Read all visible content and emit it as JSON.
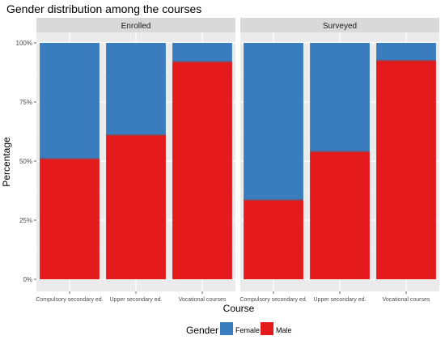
{
  "chart_data": {
    "type": "bar",
    "stacked": true,
    "orientation": "vertical",
    "title": "Gender distribution among the courses",
    "xlabel": "Course",
    "ylabel": "Percentage",
    "ylim": [
      0,
      1
    ],
    "yticks": [
      {
        "value": 0,
        "label": "0%"
      },
      {
        "value": 0.25,
        "label": "25%"
      },
      {
        "value": 0.5,
        "label": "50%"
      },
      {
        "value": 0.75,
        "label": "75%"
      },
      {
        "value": 1,
        "label": "100%"
      }
    ],
    "grid": true,
    "legend": {
      "title": "Gender",
      "position": "bottom",
      "entries": [
        {
          "label": "Female",
          "color": "#3a7dbf"
        },
        {
          "label": "Male",
          "color": "#e41a1c"
        }
      ]
    },
    "categories": [
      "Compulsory secondary ed.",
      "Upper secondary ed.",
      "Vocational courses"
    ],
    "panels": [
      {
        "label": "Enrolled",
        "series": [
          {
            "name": "Male",
            "values": [
              0.51,
              0.61,
              0.92
            ]
          },
          {
            "name": "Female",
            "values": [
              0.49,
              0.39,
              0.08
            ]
          }
        ]
      },
      {
        "label": "Surveyed",
        "series": [
          {
            "name": "Male",
            "values": [
              0.335,
              0.54,
              0.925
            ]
          },
          {
            "name": "Female",
            "values": [
              0.665,
              0.46,
              0.075
            ]
          }
        ]
      }
    ]
  }
}
